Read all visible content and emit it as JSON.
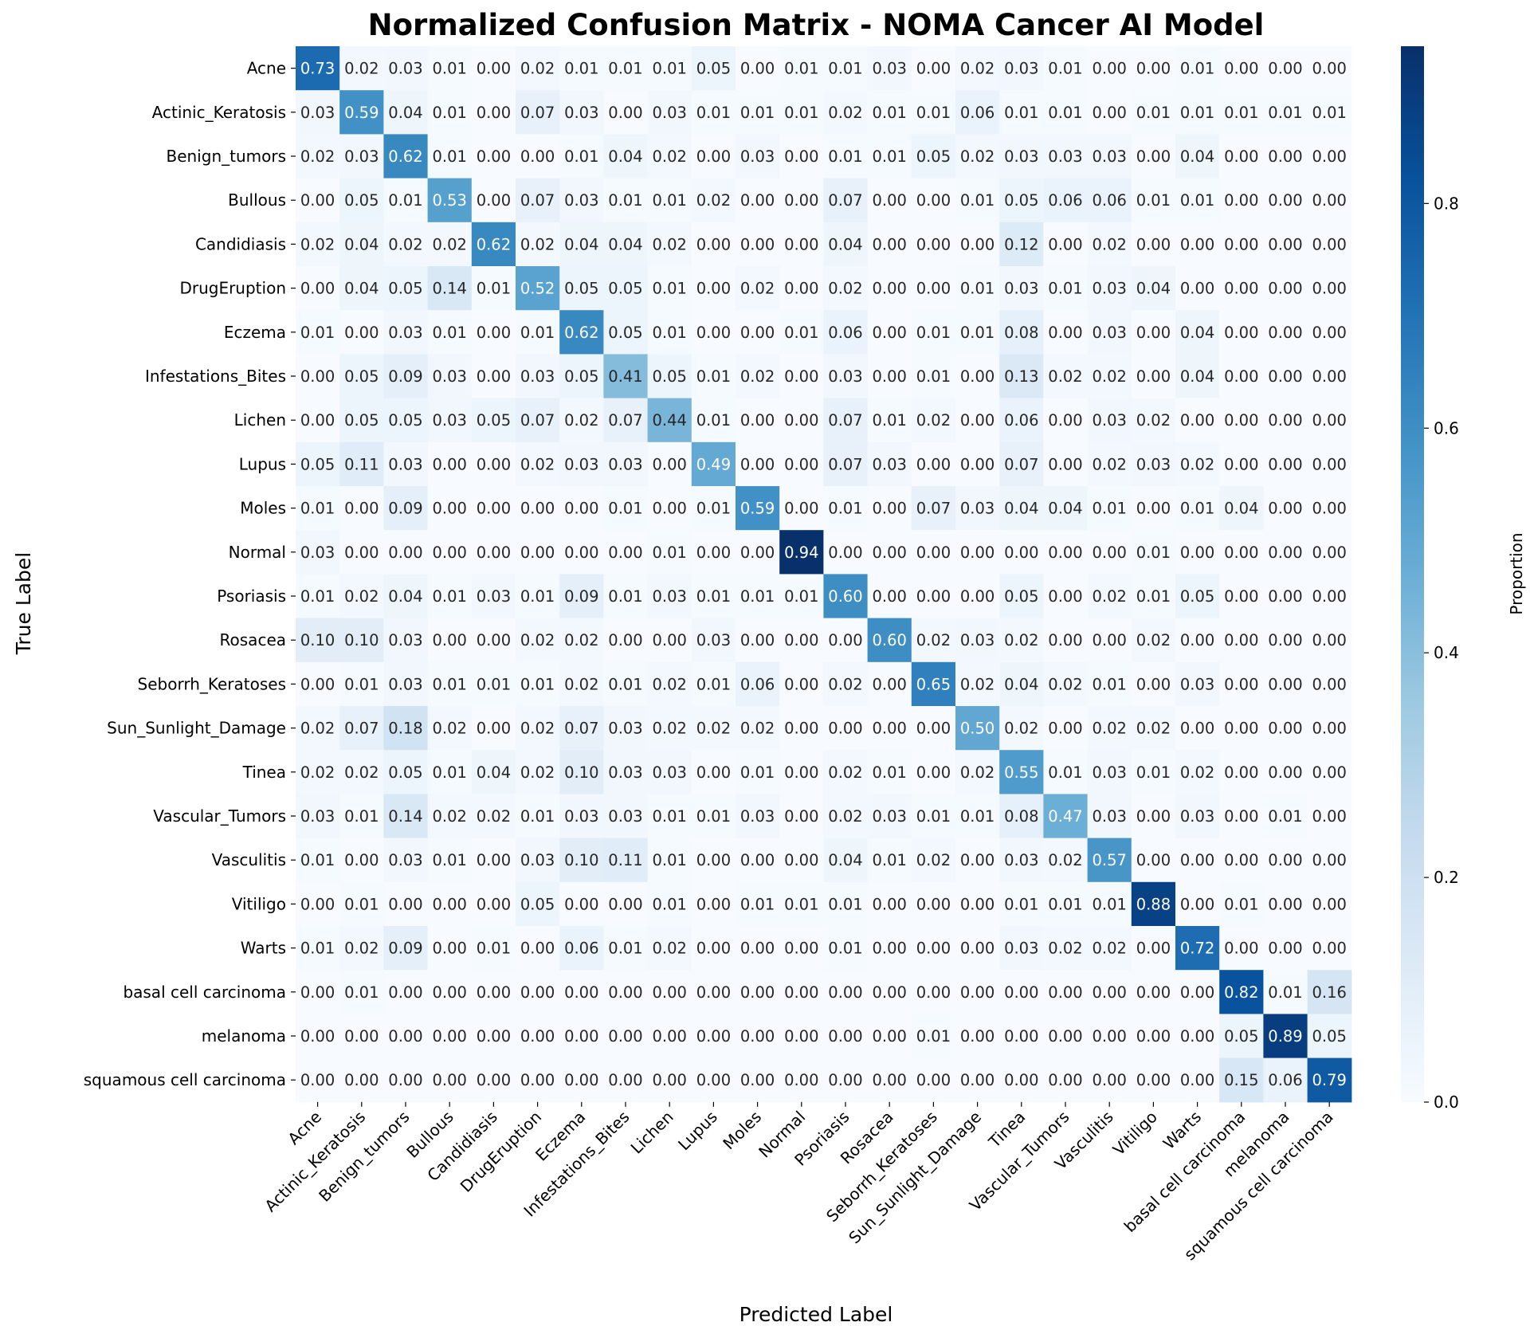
{
  "chart_data": {
    "type": "heatmap",
    "title": "Normalized Confusion Matrix - NOMA Cancer AI Model",
    "xlabel": "Predicted Label",
    "ylabel": "True Label",
    "colorbar_label": "Proportion",
    "colorbar_range": [
      0,
      0.94
    ],
    "colorbar_ticks": [
      "0.0",
      "0.2",
      "0.4",
      "0.6",
      "0.8"
    ],
    "colormap": "Blues",
    "categories": [
      "Acne",
      "Actinic_Keratosis",
      "Benign_tumors",
      "Bullous",
      "Candidiasis",
      "DrugEruption",
      "Eczema",
      "Infestations_Bites",
      "Lichen",
      "Lupus",
      "Moles",
      "Normal",
      "Psoriasis",
      "Rosacea",
      "Seborrh_Keratoses",
      "Sun_Sunlight_Damage",
      "Tinea",
      "Vascular_Tumors",
      "Vasculitis",
      "Vitiligo",
      "Warts",
      "basal cell carcinoma",
      "melanoma",
      "squamous cell carcinoma"
    ],
    "values": [
      [
        0.73,
        0.02,
        0.03,
        0.01,
        0.0,
        0.02,
        0.01,
        0.01,
        0.01,
        0.05,
        0.0,
        0.01,
        0.01,
        0.03,
        0.0,
        0.02,
        0.03,
        0.01,
        0.0,
        0.0,
        0.01,
        0.0,
        0.0,
        0.0
      ],
      [
        0.03,
        0.59,
        0.04,
        0.01,
        0.0,
        0.07,
        0.03,
        0.0,
        0.03,
        0.01,
        0.01,
        0.01,
        0.02,
        0.01,
        0.01,
        0.06,
        0.01,
        0.01,
        0.0,
        0.01,
        0.01,
        0.01,
        0.01,
        0.01
      ],
      [
        0.02,
        0.03,
        0.62,
        0.01,
        0.0,
        0.0,
        0.01,
        0.04,
        0.02,
        0.0,
        0.03,
        0.0,
        0.01,
        0.01,
        0.05,
        0.02,
        0.03,
        0.03,
        0.03,
        0.0,
        0.04,
        0.0,
        0.0,
        0.0
      ],
      [
        0.0,
        0.05,
        0.01,
        0.53,
        0.0,
        0.07,
        0.03,
        0.01,
        0.01,
        0.02,
        0.0,
        0.0,
        0.07,
        0.0,
        0.0,
        0.01,
        0.05,
        0.06,
        0.06,
        0.01,
        0.01,
        0.0,
        0.0,
        0.0
      ],
      [
        0.02,
        0.04,
        0.02,
        0.02,
        0.62,
        0.02,
        0.04,
        0.04,
        0.02,
        0.0,
        0.0,
        0.0,
        0.04,
        0.0,
        0.0,
        0.0,
        0.12,
        0.0,
        0.02,
        0.0,
        0.0,
        0.0,
        0.0,
        0.0
      ],
      [
        0.0,
        0.04,
        0.05,
        0.14,
        0.01,
        0.52,
        0.05,
        0.05,
        0.01,
        0.0,
        0.02,
        0.0,
        0.02,
        0.0,
        0.0,
        0.01,
        0.03,
        0.01,
        0.03,
        0.04,
        0.0,
        0.0,
        0.0,
        0.0
      ],
      [
        0.01,
        0.0,
        0.03,
        0.01,
        0.0,
        0.01,
        0.62,
        0.05,
        0.01,
        0.0,
        0.0,
        0.01,
        0.06,
        0.0,
        0.01,
        0.01,
        0.08,
        0.0,
        0.03,
        0.0,
        0.04,
        0.0,
        0.0,
        0.0
      ],
      [
        0.0,
        0.05,
        0.09,
        0.03,
        0.0,
        0.03,
        0.05,
        0.41,
        0.05,
        0.01,
        0.02,
        0.0,
        0.03,
        0.0,
        0.01,
        0.0,
        0.13,
        0.02,
        0.02,
        0.0,
        0.04,
        0.0,
        0.0,
        0.0
      ],
      [
        0.0,
        0.05,
        0.05,
        0.03,
        0.05,
        0.07,
        0.02,
        0.07,
        0.44,
        0.01,
        0.0,
        0.0,
        0.07,
        0.01,
        0.02,
        0.0,
        0.06,
        0.0,
        0.03,
        0.02,
        0.0,
        0.0,
        0.0,
        0.0
      ],
      [
        0.05,
        0.11,
        0.03,
        0.0,
        0.0,
        0.02,
        0.03,
        0.03,
        0.0,
        0.49,
        0.0,
        0.0,
        0.07,
        0.03,
        0.0,
        0.0,
        0.07,
        0.0,
        0.02,
        0.03,
        0.02,
        0.0,
        0.0,
        0.0
      ],
      [
        0.01,
        0.0,
        0.09,
        0.0,
        0.0,
        0.0,
        0.0,
        0.01,
        0.0,
        0.01,
        0.59,
        0.0,
        0.01,
        0.0,
        0.07,
        0.03,
        0.04,
        0.04,
        0.01,
        0.0,
        0.01,
        0.04,
        0.0,
        0.0
      ],
      [
        0.03,
        0.0,
        0.0,
        0.0,
        0.0,
        0.0,
        0.0,
        0.0,
        0.01,
        0.0,
        0.0,
        0.94,
        0.0,
        0.0,
        0.0,
        0.0,
        0.0,
        0.0,
        0.0,
        0.01,
        0.0,
        0.0,
        0.0,
        0.0
      ],
      [
        0.01,
        0.02,
        0.04,
        0.01,
        0.03,
        0.01,
        0.09,
        0.01,
        0.03,
        0.01,
        0.01,
        0.01,
        0.6,
        0.0,
        0.0,
        0.0,
        0.05,
        0.0,
        0.02,
        0.01,
        0.05,
        0.0,
        0.0,
        0.0
      ],
      [
        0.1,
        0.1,
        0.03,
        0.0,
        0.0,
        0.02,
        0.02,
        0.0,
        0.0,
        0.03,
        0.0,
        0.0,
        0.0,
        0.6,
        0.02,
        0.03,
        0.02,
        0.0,
        0.0,
        0.02,
        0.0,
        0.0,
        0.0,
        0.0
      ],
      [
        0.0,
        0.01,
        0.03,
        0.01,
        0.01,
        0.01,
        0.02,
        0.01,
        0.02,
        0.01,
        0.06,
        0.0,
        0.02,
        0.0,
        0.65,
        0.02,
        0.04,
        0.02,
        0.01,
        0.0,
        0.03,
        0.0,
        0.0,
        0.0
      ],
      [
        0.02,
        0.07,
        0.18,
        0.02,
        0.0,
        0.02,
        0.07,
        0.03,
        0.02,
        0.02,
        0.02,
        0.0,
        0.0,
        0.0,
        0.0,
        0.5,
        0.02,
        0.0,
        0.02,
        0.02,
        0.0,
        0.0,
        0.0,
        0.0
      ],
      [
        0.02,
        0.02,
        0.05,
        0.01,
        0.04,
        0.02,
        0.1,
        0.03,
        0.03,
        0.0,
        0.01,
        0.0,
        0.02,
        0.01,
        0.0,
        0.02,
        0.55,
        0.01,
        0.03,
        0.01,
        0.02,
        0.0,
        0.0,
        0.0
      ],
      [
        0.03,
        0.01,
        0.14,
        0.02,
        0.02,
        0.01,
        0.03,
        0.03,
        0.01,
        0.01,
        0.03,
        0.0,
        0.02,
        0.03,
        0.01,
        0.01,
        0.08,
        0.47,
        0.03,
        0.0,
        0.03,
        0.0,
        0.01,
        0.0
      ],
      [
        0.01,
        0.0,
        0.03,
        0.01,
        0.0,
        0.03,
        0.1,
        0.11,
        0.01,
        0.0,
        0.0,
        0.0,
        0.04,
        0.01,
        0.02,
        0.0,
        0.03,
        0.02,
        0.57,
        0.0,
        0.0,
        0.0,
        0.0,
        0.0
      ],
      [
        0.0,
        0.01,
        0.0,
        0.0,
        0.0,
        0.05,
        0.0,
        0.0,
        0.01,
        0.0,
        0.01,
        0.01,
        0.01,
        0.0,
        0.0,
        0.0,
        0.01,
        0.01,
        0.01,
        0.88,
        0.0,
        0.01,
        0.0,
        0.0
      ],
      [
        0.01,
        0.02,
        0.09,
        0.0,
        0.01,
        0.0,
        0.06,
        0.01,
        0.02,
        0.0,
        0.0,
        0.0,
        0.01,
        0.0,
        0.0,
        0.0,
        0.03,
        0.02,
        0.02,
        0.0,
        0.72,
        0.0,
        0.0,
        0.0
      ],
      [
        0.0,
        0.01,
        0.0,
        0.0,
        0.0,
        0.0,
        0.0,
        0.0,
        0.0,
        0.0,
        0.0,
        0.0,
        0.0,
        0.0,
        0.0,
        0.0,
        0.0,
        0.0,
        0.0,
        0.0,
        0.0,
        0.82,
        0.01,
        0.16
      ],
      [
        0.0,
        0.0,
        0.0,
        0.0,
        0.0,
        0.0,
        0.0,
        0.0,
        0.0,
        0.0,
        0.0,
        0.0,
        0.0,
        0.0,
        0.01,
        0.0,
        0.0,
        0.0,
        0.0,
        0.0,
        0.0,
        0.05,
        0.89,
        0.05
      ],
      [
        0.0,
        0.0,
        0.0,
        0.0,
        0.0,
        0.0,
        0.0,
        0.0,
        0.0,
        0.0,
        0.0,
        0.0,
        0.0,
        0.0,
        0.0,
        0.0,
        0.0,
        0.0,
        0.0,
        0.0,
        0.0,
        0.15,
        0.06,
        0.79
      ]
    ],
    "grid": false,
    "legend": "colorbar-right"
  }
}
